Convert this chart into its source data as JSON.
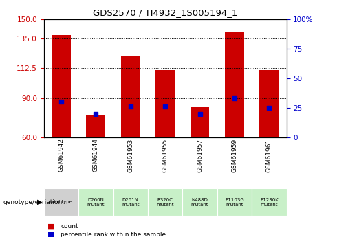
{
  "title": "GDS2570 / TI4932_1S005194_1",
  "samples": [
    "GSM61942",
    "GSM61944",
    "GSM61953",
    "GSM61955",
    "GSM61957",
    "GSM61959",
    "GSM61961"
  ],
  "genotype": [
    "wild type",
    "D260N\nmutant",
    "D261N\nmutant",
    "R320C\nmutant",
    "N488D\nmutant",
    "E1103G\nmutant",
    "E1230K\nmutant"
  ],
  "genotype_bg": [
    "#d0d0d0",
    "#c8f0c8",
    "#c8f0c8",
    "#c8f0c8",
    "#c8f0c8",
    "#c8f0c8",
    "#c8f0c8"
  ],
  "counts": [
    138,
    77,
    122,
    111,
    83,
    140,
    111
  ],
  "percentile_ranks": [
    30,
    20,
    26,
    26,
    20,
    33,
    25
  ],
  "ylim_left": [
    60,
    150
  ],
  "ylim_right": [
    0,
    100
  ],
  "yticks_left": [
    60,
    90,
    112.5,
    135,
    150
  ],
  "yticks_right": [
    0,
    25,
    50,
    75,
    100
  ],
  "bar_color": "#cc0000",
  "dot_color": "#0000cc",
  "bar_width": 0.55,
  "grid_color": "black",
  "xlabel_color": "#cc0000",
  "ylabel_right_color": "#0000cc",
  "plot_bg_color": "#ffffff",
  "sample_bg_color": "#d0d0d0",
  "legend_label1": "count",
  "legend_label2": "percentile rank within the sample",
  "genotype_label": "genotype/variation"
}
